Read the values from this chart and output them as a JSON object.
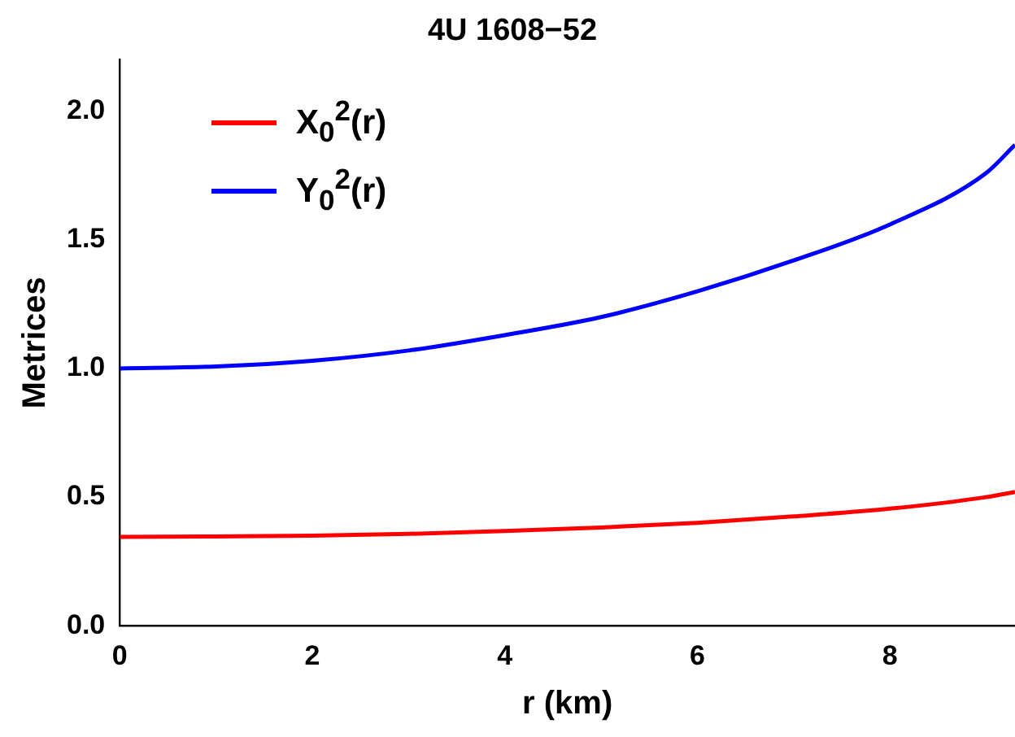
{
  "chart_data": {
    "type": "line",
    "title": "4U 1608−52",
    "xlabel": "r (km)",
    "ylabel": "Metrices",
    "x": [
      0,
      1,
      2,
      3,
      4,
      5,
      6,
      7,
      8,
      9,
      9.3
    ],
    "series": [
      {
        "name": "X$_{0}$$^{2}$(r)",
        "color": "#ff0000",
        "values": [
          0.345,
          0.347,
          0.35,
          0.357,
          0.368,
          0.382,
          0.4,
          0.425,
          0.455,
          0.5,
          0.52
        ]
      },
      {
        "name": "Y$_{0}$$^{2}$(r)",
        "color": "#0000ff",
        "values": [
          1.0,
          1.008,
          1.03,
          1.07,
          1.13,
          1.2,
          1.3,
          1.42,
          1.56,
          1.76,
          1.87
        ]
      }
    ],
    "xlim": [
      0,
      9.3
    ],
    "xticks": [
      0,
      2,
      4,
      6,
      8
    ],
    "ylim": [
      0,
      2.2
    ],
    "yticks": [
      {
        "value": 0,
        "label": "0.0"
      },
      0.5,
      {
        "value": 1,
        "label": "1.0"
      },
      1.5,
      {
        "value": 2,
        "label": "2.0"
      }
    ],
    "grid": false,
    "legend": "top left",
    "marker": "none",
    "line_style": "solid"
  }
}
